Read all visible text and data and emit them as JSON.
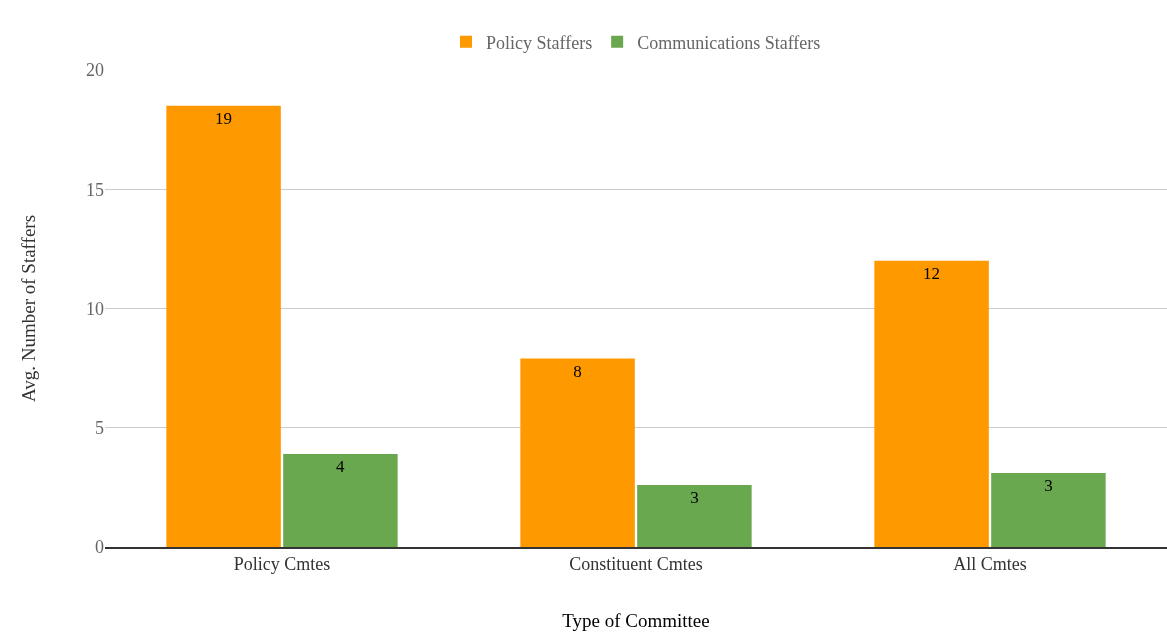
{
  "chart_data": {
    "type": "bar",
    "xlabel": "Type of Committee",
    "ylabel": "Avg. Number of Staffers",
    "categories": [
      "Policy Cmtes",
      "Constituent Cmtes",
      "All Cmtes"
    ],
    "series": [
      {
        "name": "Policy Staffers",
        "color": "#ff9900",
        "values": [
          18.5,
          7.9,
          12.0
        ],
        "value_labels": [
          "19",
          "8",
          "12"
        ]
      },
      {
        "name": "Communications Staffers",
        "color": "#6aa84f",
        "values": [
          3.9,
          2.6,
          3.1
        ],
        "value_labels": [
          "4",
          "3",
          "3"
        ]
      }
    ],
    "ylim": [
      0,
      20
    ],
    "yticks": [
      0,
      5,
      10,
      15,
      20
    ],
    "grid": "y",
    "legend": "top"
  }
}
